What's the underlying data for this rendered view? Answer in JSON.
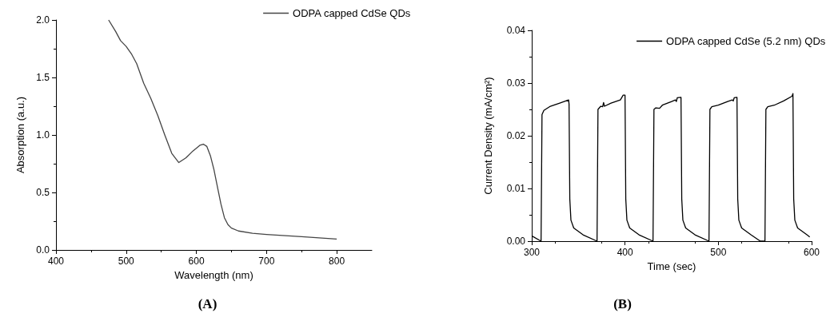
{
  "chart_data": [
    {
      "type": "line",
      "xlabel": "Wavelength (nm)",
      "ylabel": "Absorption (a.u.)",
      "legend": "top right",
      "annotations": [
        "(A)"
      ],
      "xlim": [
        400,
        850
      ],
      "xticks": [
        400,
        500,
        600,
        700,
        800
      ],
      "ylim": [
        0,
        2
      ],
      "yticks": [
        {
          "value": 0,
          "label": "0.0"
        },
        0.5,
        {
          "value": 1,
          "label": "1.0"
        },
        1.5,
        {
          "value": 2,
          "label": "2.0"
        }
      ],
      "series": [
        {
          "name": "ODPA capped CdSe QDs",
          "color": "#444444",
          "x": [
            475,
            485,
            492,
            500,
            508,
            515,
            525,
            535,
            545,
            555,
            565,
            575,
            585,
            595,
            605,
            610,
            615,
            620,
            625,
            630,
            635,
            640,
            645,
            650,
            660,
            680,
            700,
            750,
            800
          ],
          "values": [
            2.0,
            1.9,
            1.82,
            1.77,
            1.7,
            1.62,
            1.45,
            1.32,
            1.17,
            1.0,
            0.84,
            0.76,
            0.8,
            0.86,
            0.91,
            0.92,
            0.9,
            0.82,
            0.7,
            0.55,
            0.4,
            0.28,
            0.22,
            0.19,
            0.165,
            0.145,
            0.135,
            0.115,
            0.095
          ]
        }
      ]
    },
    {
      "type": "line",
      "xlabel": "Time (sec)",
      "ylabel": "Current Density (mA/cm²)",
      "legend": "top right",
      "annotations": [
        "(B)"
      ],
      "xlim": [
        300,
        600
      ],
      "xticks": [
        300,
        400,
        500,
        600
      ],
      "ylim": [
        0,
        0.04
      ],
      "yticks": [
        {
          "value": 0,
          "label": "0.00"
        },
        0.01,
        0.02,
        0.03,
        0.04
      ],
      "series": [
        {
          "name": "ODPA capped CdSe (5.2 nm) QDs",
          "color": "#000000",
          "x": [
            300,
            310,
            311,
            313,
            320,
            330,
            339.5,
            340,
            340.8,
            342,
            345,
            355,
            370,
            371,
            374,
            376,
            377,
            378,
            385,
            395,
            398,
            400,
            400.8,
            402,
            405,
            415,
            430,
            431,
            433,
            437,
            440,
            450,
            454,
            455,
            456,
            460,
            460.8,
            462,
            465,
            475,
            490,
            491,
            493,
            500,
            510,
            515,
            516,
            517,
            520,
            520.8,
            522,
            525,
            535,
            545,
            550,
            551,
            553,
            560,
            570,
            579,
            580,
            580.8,
            582,
            585,
            595,
            598
          ],
          "values": [
            0.001,
            0,
            0.024,
            0.0248,
            0.0256,
            0.0262,
            0.0268,
            0.026,
            0.008,
            0.004,
            0.0025,
            0.0012,
            0,
            0.025,
            0.0256,
            0.0255,
            0.0263,
            0.0256,
            0.0262,
            0.0268,
            0.0277,
            0.0277,
            0.008,
            0.004,
            0.0025,
            0.0012,
            0,
            0.025,
            0.0253,
            0.0252,
            0.0258,
            0.0265,
            0.0268,
            0.0265,
            0.0272,
            0.0273,
            0.008,
            0.004,
            0.0025,
            0.0012,
            0,
            0.025,
            0.0255,
            0.0258,
            0.0265,
            0.0268,
            0.0266,
            0.0272,
            0.0273,
            0.008,
            0.004,
            0.0025,
            0.0012,
            0,
            0,
            0.025,
            0.0255,
            0.0258,
            0.0266,
            0.0275,
            0.028,
            0.008,
            0.004,
            0.0025,
            0.0012,
            0.0008
          ]
        }
      ]
    }
  ]
}
